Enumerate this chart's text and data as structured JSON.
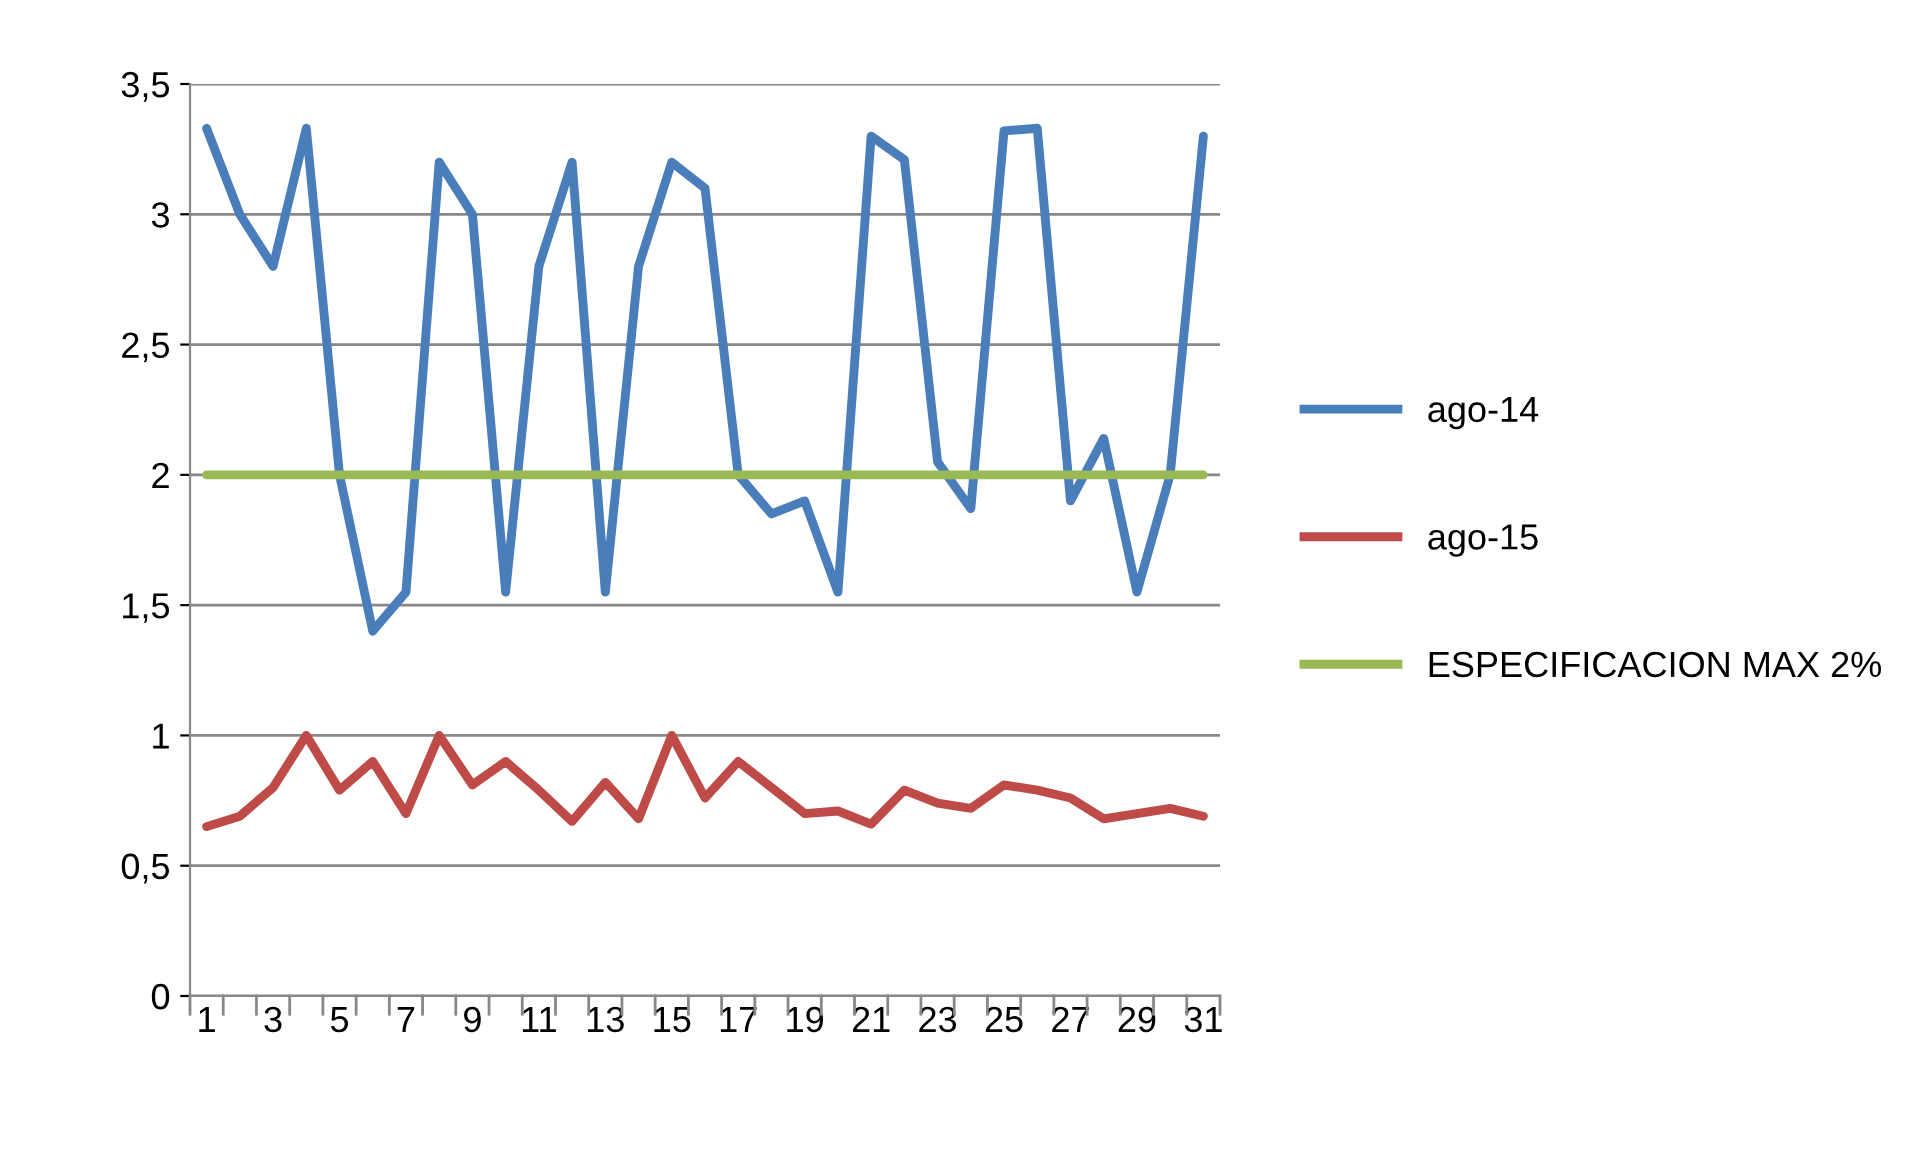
{
  "chart_data": {
    "type": "line",
    "categories": [
      "1",
      null,
      "3",
      null,
      "5",
      null,
      "7",
      null,
      "9",
      null,
      "11",
      null,
      "13",
      null,
      "15",
      null,
      "17",
      null,
      "19",
      null,
      "21",
      null,
      "23",
      null,
      "25",
      null,
      "27",
      null,
      "29",
      null,
      "31"
    ],
    "series": [
      {
        "name": "ago-14",
        "color": "#4a7ebb",
        "values": [
          3.33,
          3.0,
          2.8,
          3.33,
          2.0,
          1.4,
          1.55,
          3.2,
          3.0,
          1.55,
          2.8,
          3.2,
          1.55,
          2.8,
          3.2,
          3.1,
          2.0,
          1.85,
          1.9,
          1.55,
          3.3,
          3.21,
          2.05,
          1.87,
          3.32,
          3.33,
          1.9,
          2.14,
          1.55,
          2.0,
          3.3
        ]
      },
      {
        "name": "ago-15",
        "color": "#be4b48",
        "values": [
          0.65,
          0.69,
          0.8,
          1.0,
          0.79,
          0.9,
          0.7,
          1.0,
          0.81,
          0.9,
          0.79,
          0.67,
          0.82,
          0.68,
          1.0,
          0.76,
          0.9,
          0.8,
          0.7,
          0.71,
          0.66,
          0.79,
          0.74,
          0.72,
          0.81,
          0.79,
          0.76,
          0.68,
          0.7,
          0.72,
          0.69
        ]
      },
      {
        "name": "ESPECIFICACION MAX 2%",
        "color": "#98b954",
        "values": [
          2,
          2,
          2,
          2,
          2,
          2,
          2,
          2,
          2,
          2,
          2,
          2,
          2,
          2,
          2,
          2,
          2,
          2,
          2,
          2,
          2,
          2,
          2,
          2,
          2,
          2,
          2,
          2,
          2,
          2,
          2
        ]
      }
    ],
    "ylim": [
      0,
      3.5
    ],
    "yticks": [
      0,
      {
        "value": 0.5,
        "label": "0,5"
      },
      1,
      {
        "value": 1.5,
        "label": "1,5"
      },
      2,
      {
        "value": 2.5,
        "label": "2,5"
      },
      3,
      {
        "value": 3.5,
        "label": "3,5"
      }
    ],
    "grid": "y",
    "legend": "right",
    "marker": "none",
    "line_style": "solid"
  }
}
